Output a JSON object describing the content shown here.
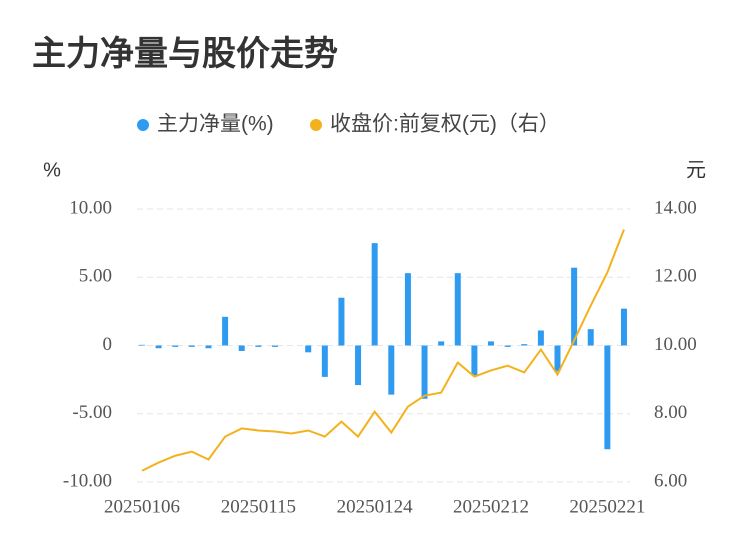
{
  "chart_data": {
    "type": "bar-line",
    "title": "主力净量与股价走势",
    "y_label": "%",
    "y2_label": "元",
    "categories": [
      "20250106",
      null,
      null,
      null,
      null,
      null,
      null,
      "20250115",
      null,
      null,
      null,
      null,
      null,
      null,
      "20250124",
      null,
      null,
      null,
      null,
      null,
      null,
      "20250212",
      null,
      null,
      null,
      null,
      null,
      null,
      "20250221",
      null
    ],
    "series": [
      {
        "name": "主力净量(%)",
        "type": "bar",
        "color": "#2f9bf0",
        "values": [
          0.05,
          -0.2,
          -0.1,
          -0.1,
          -0.2,
          2.1,
          -0.4,
          -0.1,
          -0.1,
          0,
          -0.5,
          -2.3,
          3.5,
          -2.9,
          7.5,
          -3.6,
          5.3,
          -3.9,
          0.3,
          5.3,
          -2.2,
          0.3,
          -0.1,
          0.1,
          1.1,
          -1.9,
          5.7,
          1.2,
          -7.6,
          2.7
        ]
      },
      {
        "name": "收盘价:前复权(元)（右）",
        "type": "line",
        "axis": "y2",
        "color": "#f3b21c",
        "values": [
          6.33,
          6.57,
          6.77,
          6.89,
          6.66,
          7.33,
          7.57,
          7.51,
          7.48,
          7.42,
          7.51,
          7.33,
          7.77,
          7.33,
          8.06,
          7.45,
          8.21,
          8.53,
          8.62,
          9.5,
          9.09,
          9.27,
          9.41,
          9.21,
          9.88,
          9.15,
          10.15,
          11.17,
          12.14,
          13.4
        ]
      }
    ],
    "ylim": [
      -10,
      10
    ],
    "yticks": [
      {
        "value": -10,
        "label": "-10.00"
      },
      {
        "value": -5,
        "label": "-5.00"
      },
      0,
      {
        "value": 5,
        "label": "5.00"
      },
      {
        "value": 10,
        "label": "10.00"
      }
    ],
    "y2lim": [
      6,
      14
    ],
    "y2ticks": [
      {
        "value": 6,
        "label": "6.00"
      },
      {
        "value": 8,
        "label": "8.00"
      },
      {
        "value": 10,
        "label": "10.00"
      },
      {
        "value": 12,
        "label": "12.00"
      },
      {
        "value": 14,
        "label": "14.00"
      }
    ],
    "grid": true,
    "legend": "top"
  }
}
